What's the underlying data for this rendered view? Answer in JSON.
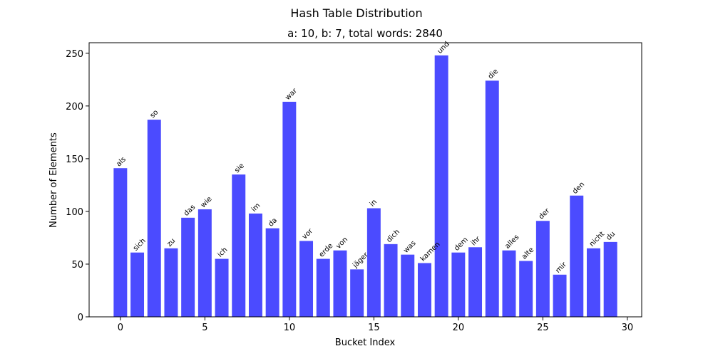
{
  "chart_data": {
    "type": "bar",
    "suptitle": "Hash Table Distribution",
    "title": "a: 10, b: 7, total words: 2840",
    "xlabel": "Bucket Index",
    "ylabel": "Number of Elements",
    "xlim": [
      -1.85,
      30.85
    ],
    "ylim": [
      0,
      260
    ],
    "xticks": [
      0,
      5,
      10,
      15,
      20,
      25,
      30
    ],
    "yticks": [
      0,
      50,
      100,
      150,
      200,
      250
    ],
    "bar_color": "#4b4bff",
    "bars": [
      {
        "x": 0,
        "value": 141,
        "label": "als"
      },
      {
        "x": 1,
        "value": 61,
        "label": "sich"
      },
      {
        "x": 2,
        "value": 187,
        "label": "so"
      },
      {
        "x": 3,
        "value": 65,
        "label": "zu"
      },
      {
        "x": 4,
        "value": 94,
        "label": "das"
      },
      {
        "x": 5,
        "value": 102,
        "label": "wie"
      },
      {
        "x": 6,
        "value": 55,
        "label": "ich"
      },
      {
        "x": 7,
        "value": 135,
        "label": "sie"
      },
      {
        "x": 8,
        "value": 98,
        "label": "im"
      },
      {
        "x": 9,
        "value": 84,
        "label": "da"
      },
      {
        "x": 10,
        "value": 204,
        "label": "war"
      },
      {
        "x": 11,
        "value": 72,
        "label": "vor"
      },
      {
        "x": 12,
        "value": 55,
        "label": "erde"
      },
      {
        "x": 13,
        "value": 63,
        "label": "von"
      },
      {
        "x": 14,
        "value": 45,
        "label": "jäger"
      },
      {
        "x": 15,
        "value": 103,
        "label": "in"
      },
      {
        "x": 16,
        "value": 69,
        "label": "dich"
      },
      {
        "x": 17,
        "value": 59,
        "label": "was"
      },
      {
        "x": 18,
        "value": 51,
        "label": "kamen"
      },
      {
        "x": 19,
        "value": 248,
        "label": "und"
      },
      {
        "x": 20,
        "value": 61,
        "label": "dem"
      },
      {
        "x": 21,
        "value": 66,
        "label": "ihr"
      },
      {
        "x": 22,
        "value": 224,
        "label": "die"
      },
      {
        "x": 23,
        "value": 63,
        "label": "alles"
      },
      {
        "x": 24,
        "value": 53,
        "label": "alte"
      },
      {
        "x": 25,
        "value": 91,
        "label": "der"
      },
      {
        "x": 26,
        "value": 40,
        "label": "mir"
      },
      {
        "x": 27,
        "value": 115,
        "label": "den"
      },
      {
        "x": 28,
        "value": 65,
        "label": "nicht"
      },
      {
        "x": 29,
        "value": 71,
        "label": "du"
      }
    ]
  }
}
